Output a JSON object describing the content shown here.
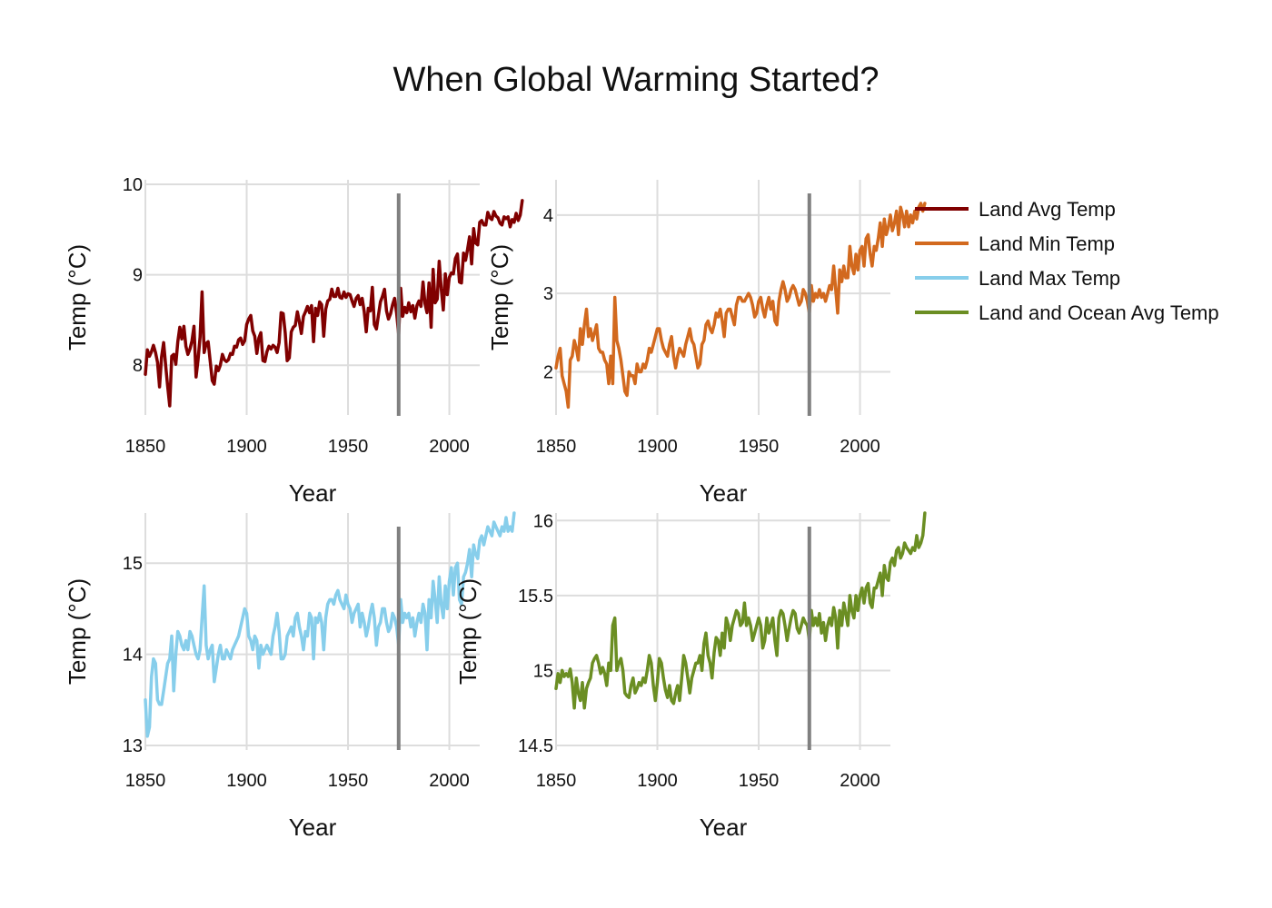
{
  "figure": {
    "title": "When Global Warming Started?",
    "background": "#ffffff",
    "grid_color": "#dddddd",
    "marker_color": "#808080"
  },
  "legend": {
    "placement": "top-right",
    "items": [
      {
        "label": "Land Avg Temp",
        "color": "#800000"
      },
      {
        "label": "Land Min Temp",
        "color": "#d2691e"
      },
      {
        "label": "Land Max Temp",
        "color": "#87ceeb"
      },
      {
        "label": "Land and Ocean Avg Temp",
        "color": "#6b8e23"
      }
    ]
  },
  "chart_data": [
    {
      "type": "line",
      "xlabel": "Year",
      "ylabel": "Temp (°C)",
      "xlim": [
        1850,
        2015
      ],
      "ylim": [
        7.45,
        10.05
      ],
      "xticks": [
        1850,
        1900,
        1950,
        2000
      ],
      "yticks": [
        8,
        9,
        10
      ],
      "ytick_labels": [
        "8",
        "9",
        "10"
      ],
      "grid": true,
      "vline_x": 1975,
      "series": [
        {
          "name": "Land Avg Temp",
          "color": "#800000",
          "x_start": 1850,
          "x_step": 1,
          "values": [
            7.9,
            8.17,
            8.1,
            8.15,
            8.22,
            8.14,
            8.03,
            7.76,
            8.09,
            8.25,
            8.0,
            7.77,
            7.55,
            8.1,
            8.12,
            8.01,
            8.26,
            8.42,
            8.29,
            8.43,
            8.21,
            8.12,
            8.18,
            8.27,
            8.43,
            7.87,
            8.06,
            8.31,
            8.81,
            8.14,
            8.24,
            8.26,
            8.04,
            7.83,
            7.79,
            7.99,
            7.94,
            8.0,
            8.12,
            8.06,
            8.04,
            8.06,
            8.13,
            8.12,
            8.21,
            8.2,
            8.28,
            8.3,
            8.23,
            8.27,
            8.45,
            8.51,
            8.55,
            8.38,
            8.32,
            8.13,
            8.3,
            8.36,
            8.05,
            8.04,
            8.15,
            8.21,
            8.18,
            8.22,
            8.2,
            8.14,
            8.25,
            8.58,
            8.57,
            8.36,
            8.05,
            8.08,
            8.37,
            8.42,
            8.44,
            8.59,
            8.48,
            8.35,
            8.54,
            8.59,
            8.65,
            8.58,
            8.66,
            8.26,
            8.63,
            8.55,
            8.7,
            8.67,
            8.32,
            8.62,
            8.71,
            8.73,
            8.84,
            8.76,
            8.76,
            8.85,
            8.75,
            8.74,
            8.81,
            8.75,
            8.79,
            8.78,
            8.71,
            8.65,
            8.74,
            8.77,
            8.67,
            8.74,
            8.59,
            8.37,
            8.63,
            8.6,
            8.86,
            8.45,
            8.4,
            8.55,
            8.7,
            8.76,
            8.84,
            8.6,
            8.51,
            8.57,
            8.67,
            8.74,
            8.57,
            8.34,
            8.85,
            8.54,
            8.64,
            8.58,
            8.69,
            8.59,
            8.66,
            8.52,
            8.66,
            8.71,
            8.65,
            8.92,
            8.68,
            8.58,
            8.91,
            8.42,
            9.06,
            8.69,
            8.73,
            9.15,
            8.85,
            8.61,
            9.01,
            8.78,
            8.97,
            9.02,
            9.01,
            9.18,
            9.23,
            8.92,
            8.91,
            9.24,
            9.16,
            9.28,
            9.42,
            9.12,
            9.51,
            9.35,
            9.33,
            9.58,
            9.6,
            9.55,
            9.55,
            9.69,
            9.63,
            9.61,
            9.7,
            9.65,
            9.63,
            9.57,
            9.55,
            9.64,
            9.62,
            9.64,
            9.53,
            9.61,
            9.58,
            9.68,
            9.6,
            9.66,
            9.82
          ]
        }
      ]
    },
    {
      "type": "line",
      "xlabel": "Year",
      "ylabel": "Temp (°C)",
      "xlim": [
        1850,
        2015
      ],
      "ylim": [
        1.45,
        4.45
      ],
      "xticks": [
        1850,
        1900,
        1950,
        2000
      ],
      "yticks": [
        2,
        3,
        4
      ],
      "ytick_labels": [
        "2",
        "3",
        "4"
      ],
      "grid": true,
      "vline_x": 1975,
      "series": [
        {
          "name": "Land Min Temp",
          "color": "#d2691e",
          "x_start": 1850,
          "x_step": 1,
          "values": [
            2.05,
            2.2,
            2.3,
            1.95,
            1.85,
            1.75,
            1.55,
            2.15,
            2.2,
            2.4,
            2.3,
            2.15,
            2.55,
            2.35,
            2.6,
            2.8,
            2.45,
            2.55,
            2.4,
            2.5,
            2.6,
            2.3,
            2.25,
            2.25,
            2.15,
            2.1,
            1.85,
            2.2,
            1.85,
            2.95,
            2.4,
            2.3,
            2.15,
            1.95,
            1.75,
            1.7,
            2.0,
            1.95,
            1.95,
            1.85,
            2.1,
            2.0,
            2.0,
            2.1,
            2.05,
            2.15,
            2.3,
            2.25,
            2.35,
            2.45,
            2.55,
            2.55,
            2.4,
            2.3,
            2.25,
            2.2,
            2.35,
            2.45,
            2.2,
            2.05,
            2.2,
            2.3,
            2.25,
            2.2,
            2.35,
            2.45,
            2.55,
            2.4,
            2.35,
            2.2,
            2.05,
            2.1,
            2.35,
            2.4,
            2.6,
            2.65,
            2.55,
            2.5,
            2.6,
            2.75,
            2.7,
            2.8,
            2.65,
            2.45,
            2.75,
            2.8,
            2.8,
            2.7,
            2.6,
            2.85,
            2.95,
            2.95,
            2.9,
            2.9,
            2.95,
            3.0,
            2.95,
            2.85,
            2.7,
            2.75,
            2.9,
            2.95,
            2.8,
            2.7,
            2.85,
            2.95,
            2.8,
            2.9,
            2.65,
            2.6,
            2.9,
            3.05,
            3.15,
            3.05,
            2.9,
            2.95,
            3.05,
            3.1,
            3.05,
            2.95,
            2.85,
            2.9,
            3.05,
            3.0,
            2.9,
            2.75,
            3.1,
            2.9,
            3.0,
            2.95,
            3.05,
            2.95,
            3.0,
            2.9,
            3.0,
            3.1,
            3.05,
            3.35,
            3.05,
            2.75,
            3.3,
            3.15,
            3.35,
            3.2,
            3.2,
            3.6,
            3.35,
            3.25,
            3.5,
            3.3,
            3.55,
            3.6,
            3.35,
            3.7,
            3.75,
            3.5,
            3.35,
            3.6,
            3.55,
            3.7,
            3.9,
            3.6,
            3.95,
            3.75,
            3.85,
            4.0,
            3.8,
            3.9,
            4.05,
            3.75,
            4.1,
            4.0,
            3.85,
            4.05,
            3.85,
            4.0,
            3.9,
            4.05,
            3.95,
            4.1,
            4.15,
            4.05,
            4.15
          ]
        }
      ]
    },
    {
      "type": "line",
      "xlabel": "Year",
      "ylabel": "Temp (°C)",
      "xlim": [
        1850,
        2015
      ],
      "ylim": [
        12.95,
        15.55
      ],
      "xticks": [
        1850,
        1900,
        1950,
        2000
      ],
      "yticks": [
        13,
        14,
        15
      ],
      "ytick_labels": [
        "13",
        "14",
        "15"
      ],
      "grid": true,
      "vline_x": 1975,
      "series": [
        {
          "name": "Land Max Temp",
          "color": "#87ceeb",
          "x_start": 1850,
          "x_step": 1,
          "values": [
            13.5,
            13.1,
            13.2,
            13.75,
            13.95,
            13.9,
            13.5,
            13.45,
            13.45,
            13.6,
            13.75,
            13.9,
            13.95,
            14.2,
            13.6,
            14.0,
            14.25,
            14.2,
            14.1,
            14.05,
            14.15,
            14.05,
            14.25,
            14.2,
            14.1,
            14.0,
            13.95,
            14.05,
            14.4,
            14.75,
            14.1,
            13.95,
            14.05,
            14.1,
            13.7,
            13.85,
            14.0,
            14.1,
            13.95,
            13.95,
            14.05,
            14.0,
            13.95,
            14.05,
            14.1,
            14.15,
            14.2,
            14.3,
            14.4,
            14.5,
            14.45,
            14.2,
            14.15,
            14.05,
            14.2,
            14.15,
            13.85,
            14.1,
            14.0,
            14.05,
            14.1,
            14.05,
            14.0,
            14.2,
            14.3,
            14.45,
            14.25,
            13.95,
            13.95,
            14.0,
            14.2,
            14.25,
            14.3,
            14.2,
            14.4,
            14.45,
            14.3,
            14.2,
            14.05,
            14.25,
            14.2,
            14.45,
            14.4,
            13.95,
            14.4,
            14.35,
            14.45,
            14.35,
            14.05,
            14.4,
            14.55,
            14.6,
            14.6,
            14.55,
            14.65,
            14.7,
            14.6,
            14.55,
            14.5,
            14.65,
            14.55,
            14.5,
            14.35,
            14.45,
            14.5,
            14.55,
            14.3,
            14.45,
            14.35,
            14.2,
            14.3,
            14.45,
            14.55,
            14.4,
            14.1,
            14.3,
            14.35,
            14.5,
            14.5,
            14.35,
            14.25,
            14.3,
            14.45,
            14.4,
            14.3,
            14.1,
            14.6,
            14.35,
            14.45,
            14.4,
            14.45,
            14.3,
            14.4,
            14.2,
            14.35,
            14.45,
            14.35,
            14.55,
            14.45,
            14.05,
            14.6,
            14.4,
            14.8,
            14.6,
            14.35,
            14.85,
            14.55,
            14.4,
            14.75,
            14.5,
            14.8,
            14.95,
            14.65,
            14.95,
            15.0,
            14.6,
            14.55,
            14.85,
            14.9,
            15.0,
            15.15,
            14.85,
            15.2,
            15.1,
            15.05,
            15.25,
            15.3,
            15.2,
            15.3,
            15.4,
            15.35,
            15.3,
            15.45,
            15.4,
            15.35,
            15.3,
            15.4,
            15.35,
            15.5,
            15.35,
            15.4,
            15.35,
            15.55
          ]
        }
      ]
    },
    {
      "type": "line",
      "xlabel": "Year",
      "ylabel": "Temp (°C)",
      "xlim": [
        1850,
        2015
      ],
      "ylim": [
        14.47,
        16.05
      ],
      "xticks": [
        1850,
        1900,
        1950,
        2000
      ],
      "yticks": [
        14.5,
        15,
        15.5,
        16
      ],
      "ytick_labels": [
        "14.5",
        "15",
        "15.5",
        "16"
      ],
      "grid": true,
      "vline_x": 1975,
      "series": [
        {
          "name": "Land and Ocean Avg Temp",
          "color": "#6b8e23",
          "x_start": 1850,
          "x_step": 1,
          "values": [
            14.88,
            14.98,
            14.92,
            15.0,
            14.96,
            14.98,
            14.96,
            15.01,
            14.92,
            14.75,
            14.95,
            14.85,
            14.8,
            14.92,
            14.75,
            14.88,
            14.92,
            14.95,
            15.05,
            15.08,
            15.1,
            15.05,
            14.98,
            15.02,
            14.98,
            14.9,
            15.05,
            15.0,
            15.3,
            15.35,
            15.0,
            15.05,
            15.08,
            15.0,
            14.85,
            14.83,
            14.82,
            14.9,
            14.95,
            14.85,
            14.88,
            14.92,
            14.9,
            14.95,
            14.92,
            15.0,
            15.1,
            15.05,
            14.9,
            14.8,
            14.92,
            15.08,
            15.05,
            14.95,
            14.87,
            14.82,
            14.9,
            14.8,
            14.78,
            14.85,
            14.9,
            14.8,
            14.95,
            15.1,
            15.05,
            14.95,
            14.85,
            14.95,
            15.0,
            15.05,
            15.05,
            15.1,
            15.0,
            15.18,
            15.25,
            15.1,
            15.05,
            14.95,
            15.12,
            15.22,
            15.2,
            15.1,
            15.25,
            15.15,
            15.35,
            15.3,
            15.2,
            15.3,
            15.35,
            15.4,
            15.38,
            15.3,
            15.32,
            15.45,
            15.3,
            15.35,
            15.3,
            15.2,
            15.25,
            15.3,
            15.35,
            15.3,
            15.15,
            15.2,
            15.35,
            15.25,
            15.3,
            15.35,
            15.2,
            15.1,
            15.35,
            15.4,
            15.38,
            15.3,
            15.2,
            15.28,
            15.35,
            15.4,
            15.38,
            15.28,
            15.25,
            15.3,
            15.35,
            15.32,
            15.3,
            15.2,
            15.4,
            15.3,
            15.35,
            15.3,
            15.38,
            15.25,
            15.32,
            15.2,
            15.3,
            15.35,
            15.3,
            15.42,
            15.35,
            15.15,
            15.4,
            15.3,
            15.45,
            15.38,
            15.3,
            15.5,
            15.4,
            15.35,
            15.5,
            15.4,
            15.5,
            15.55,
            15.45,
            15.55,
            15.58,
            15.45,
            15.42,
            15.55,
            15.55,
            15.6,
            15.65,
            15.5,
            15.7,
            15.62,
            15.6,
            15.72,
            15.75,
            15.7,
            15.8,
            15.82,
            15.75,
            15.78,
            15.85,
            15.82,
            15.8,
            15.78,
            15.82,
            15.8,
            15.9,
            15.82,
            15.85,
            15.9,
            16.05
          ]
        }
      ]
    }
  ]
}
